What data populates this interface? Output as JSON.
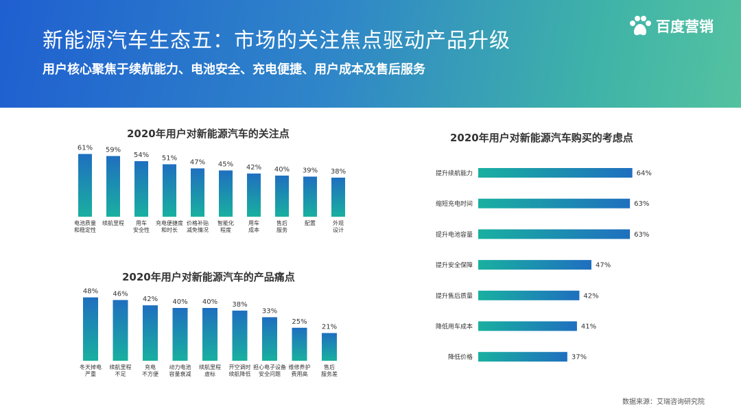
{
  "header": {
    "title": "新能源汽车生态五：市场的关注焦点驱动产品升级",
    "subtitle": "用户核心聚焦于续航能力、电池安全、充电便捷、用户成本及售后服务"
  },
  "logo": {
    "text": "百度营销",
    "icon": "baidu-paw-icon"
  },
  "colors": {
    "bar_top": "#1f6fbf",
    "bar_bottom": "#19b0a0",
    "header_start": "#1f5fd0",
    "header_end": "#54c2a0"
  },
  "chart_data": [
    {
      "type": "bar",
      "title": "2020年用户对新能源汽车的关注点",
      "categories": [
        "电池质量\n和稳定性",
        "续航里程",
        "用车\n安全性",
        "充电便捷度\n和时长",
        "价格补贴\n减免情况",
        "智能化\n程度",
        "用车\n成本",
        "售后\n服务",
        "配置",
        "外观\n设计"
      ],
      "values": [
        61,
        59,
        54,
        51,
        47,
        45,
        42,
        40,
        39,
        38
      ],
      "value_suffix": "%",
      "xlabel": "",
      "ylabel": ""
    },
    {
      "type": "bar",
      "title": "2020年用户对新能源汽车的产品痛点",
      "categories": [
        "冬天掉电\n严重",
        "续航里程\n不足",
        "充电\n不方便",
        "动力电池\n容量衰减",
        "续航里程\n虚标",
        "开空调时\n续航降低",
        "担心电子设备\n安全问题",
        "维修养护\n费用高",
        "售后\n服务差"
      ],
      "values": [
        48,
        46,
        42,
        40,
        40,
        38,
        33,
        25,
        21
      ],
      "value_suffix": "%",
      "xlabel": "",
      "ylabel": ""
    },
    {
      "type": "bar",
      "orientation": "horizontal",
      "title": "2020年用户对新能源汽车购买的考虑点",
      "categories": [
        "提升续航能力",
        "缩短充电时间",
        "提升电池容量",
        "提升安全保障",
        "提升售后质量",
        "降低用车成本",
        "降低价格"
      ],
      "values": [
        64,
        63,
        63,
        47,
        42,
        41,
        37
      ],
      "value_suffix": "%",
      "xlabel": "",
      "ylabel": ""
    }
  ],
  "source": "数据来源：艾瑞咨询研究院"
}
